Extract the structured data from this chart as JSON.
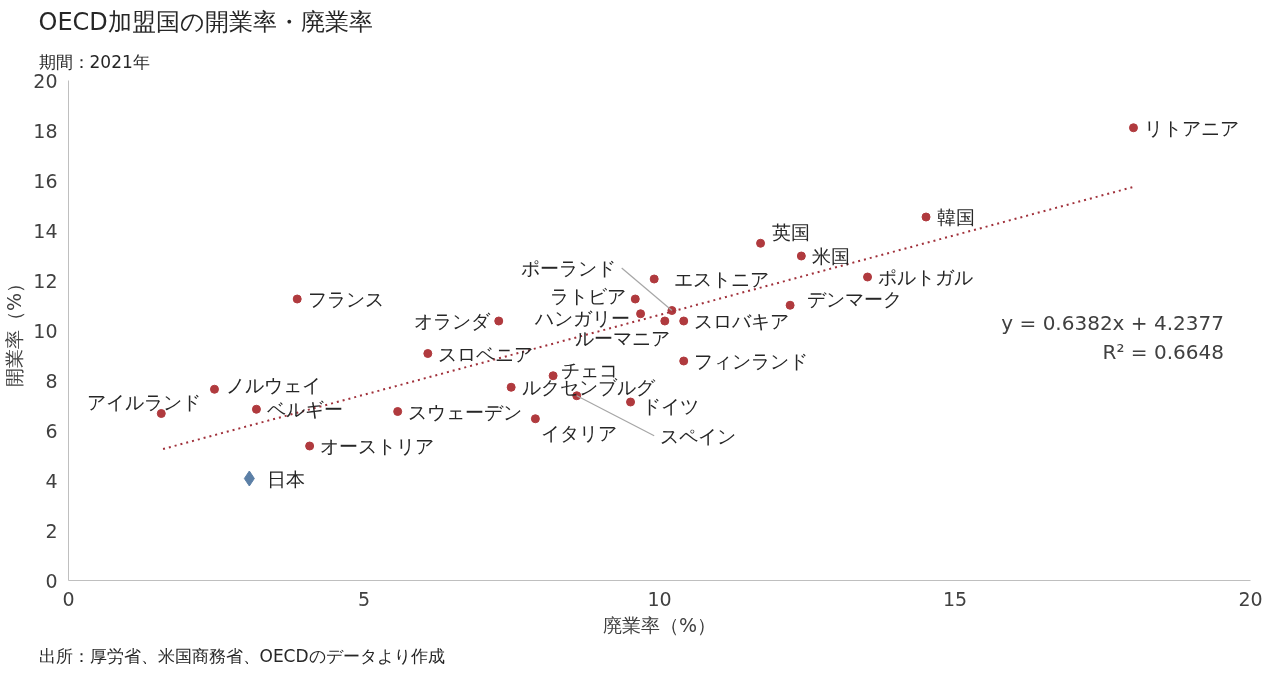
{
  "chart_data": {
    "type": "scatter",
    "title": "OECD加盟国の開業率・廃業率",
    "subtitle": "期間：2021年",
    "xlabel": "廃業率（%）",
    "ylabel": "開業率（%）",
    "xlim": [
      0,
      20
    ],
    "ylim": [
      0,
      20
    ],
    "xticks": [
      0,
      5,
      10,
      15,
      20
    ],
    "yticks": [
      0,
      2,
      4,
      6,
      8,
      10,
      12,
      14,
      16,
      18,
      20
    ],
    "grid": false,
    "series": [
      {
        "marker": "circle",
        "color": "#b03a3e",
        "x": [
          1.57,
          2.47,
          3.18,
          3.87,
          4.08,
          6.08,
          5.57,
          7.28,
          7.49,
          8.2,
          7.9,
          8.6,
          9.51,
          9.59,
          9.68,
          10.09,
          10.21,
          10.41,
          9.91,
          10.41,
          11.71,
          12.4,
          12.21,
          13.52,
          14.51,
          18.02
        ],
        "values": [
          6.68,
          7.65,
          6.85,
          11.26,
          5.38,
          9.08,
          6.76,
          10.38,
          7.73,
          8.19,
          6.47,
          7.39,
          7.14,
          11.26,
          10.67,
          10.38,
          10.8,
          10.38,
          12.06,
          8.78,
          13.49,
          12.98,
          11.01,
          12.14,
          14.54,
          18.11
        ]
      },
      {
        "marker": "diamond",
        "color": "#5b7fa6",
        "x": [
          3.06
        ],
        "values": [
          4.08
        ]
      },
      {
        "type": "line",
        "line_style": "dotted",
        "color": "#a0303a",
        "x": [
          1.6,
          18.0
        ],
        "values": [
          5.26,
          15.73
        ]
      }
    ],
    "annotations": [
      {
        "text": "アイルランド",
        "x": 1.57,
        "y": 6.68
      },
      {
        "text": "ノルウェイ",
        "x": 2.47,
        "y": 7.65
      },
      {
        "text": "ベルギー",
        "x": 3.18,
        "y": 6.85
      },
      {
        "text": "フランス",
        "x": 3.87,
        "y": 11.26
      },
      {
        "text": "オーストリア",
        "x": 4.08,
        "y": 5.38
      },
      {
        "text": "スロベニア",
        "x": 6.08,
        "y": 9.08
      },
      {
        "text": "スウェーデン",
        "x": 5.57,
        "y": 6.76
      },
      {
        "text": "オランダ",
        "x": 7.28,
        "y": 10.38
      },
      {
        "text": "ルクセンブルグ",
        "x": 7.49,
        "y": 7.73
      },
      {
        "text": "チェコ",
        "x": 8.2,
        "y": 8.19
      },
      {
        "text": "イタリア",
        "x": 7.9,
        "y": 6.47
      },
      {
        "text": "スペイン",
        "x": 8.6,
        "y": 7.39
      },
      {
        "text": "ドイツ",
        "x": 9.51,
        "y": 7.14
      },
      {
        "text": "ラトビア",
        "x": 9.59,
        "y": 11.26
      },
      {
        "text": "ハンガリー",
        "x": 9.68,
        "y": 10.67
      },
      {
        "text": "ルーマニア",
        "x": 10.09,
        "y": 10.38
      },
      {
        "text": "ポーランド",
        "x": 10.21,
        "y": 10.8
      },
      {
        "text": "スロバキア",
        "x": 10.41,
        "y": 10.38
      },
      {
        "text": "エストニア",
        "x": 9.91,
        "y": 12.06
      },
      {
        "text": "フィンランド",
        "x": 10.41,
        "y": 8.78
      },
      {
        "text": "英国",
        "x": 11.71,
        "y": 13.49
      },
      {
        "text": "米国",
        "x": 12.4,
        "y": 12.98
      },
      {
        "text": "デンマーク",
        "x": 12.21,
        "y": 11.01
      },
      {
        "text": "ポルトガル",
        "x": 13.52,
        "y": 12.14
      },
      {
        "text": "韓国",
        "x": 14.51,
        "y": 14.54
      },
      {
        "text": "リトアニア",
        "x": 18.02,
        "y": 18.11
      },
      {
        "text": "日本",
        "x": 3.06,
        "y": 4.08
      },
      "y = 0.6382x + 4.2377",
      "R² = 0.6648",
      "出所：厚労省、米国商務省、OECDのデータより作成"
    ]
  }
}
